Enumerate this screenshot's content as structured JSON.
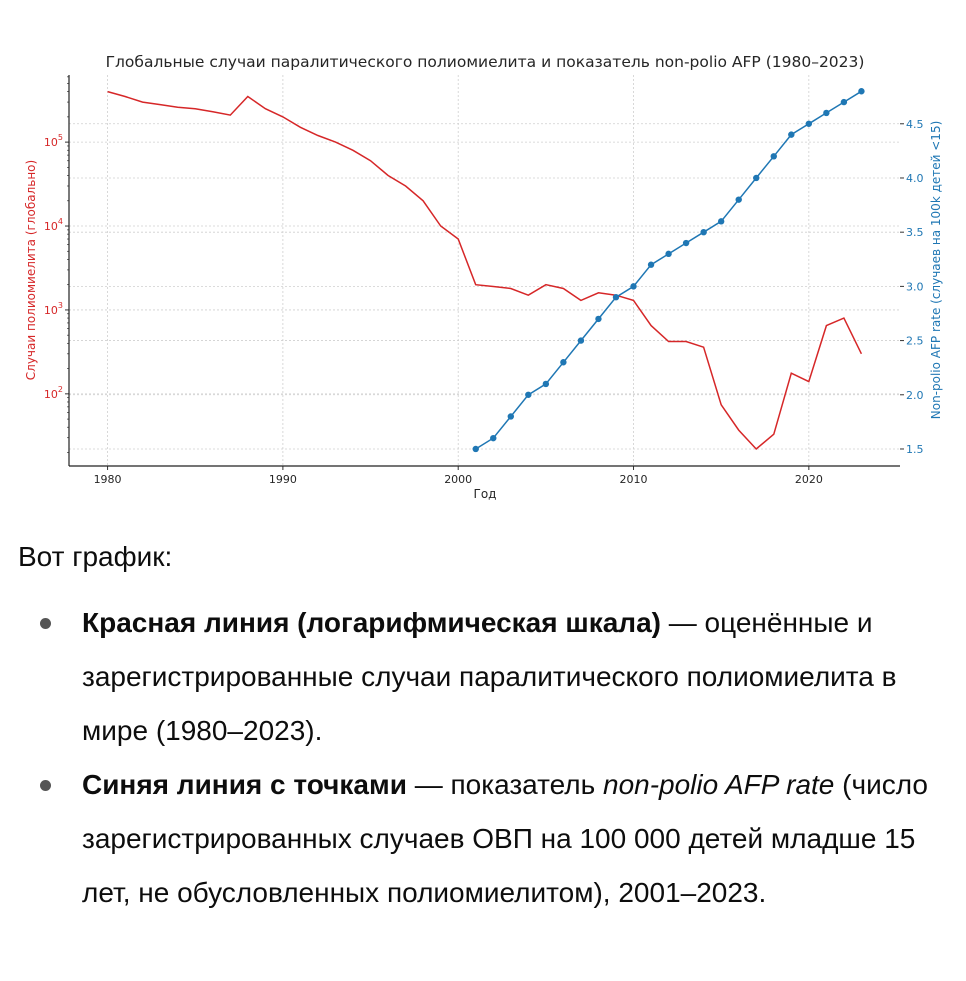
{
  "chart_data": {
    "type": "line",
    "title": "Глобальные случаи паралитического полиомиелита и показатель non-polio AFP (1980–2023)",
    "xlabel": "Год",
    "xlim": [
      1977.8,
      2025.2
    ],
    "xticks": [
      1980,
      1990,
      2000,
      2010,
      2020
    ],
    "grid": true,
    "series": [
      {
        "name": "Случаи полиомиелита (глобально)",
        "axis": "left",
        "scale": "log",
        "color": "#d62728",
        "markers": false,
        "x": [
          1980,
          1981,
          1982,
          1983,
          1984,
          1985,
          1986,
          1987,
          1988,
          1989,
          1990,
          1991,
          1992,
          1993,
          1994,
          1995,
          1996,
          1997,
          1998,
          1999,
          2000,
          2001,
          2002,
          2003,
          2004,
          2005,
          2006,
          2007,
          2008,
          2009,
          2010,
          2011,
          2012,
          2013,
          2014,
          2015,
          2016,
          2017,
          2018,
          2019,
          2020,
          2021,
          2022,
          2023
        ],
        "values": [
          400000,
          350000,
          300000,
          280000,
          260000,
          250000,
          230000,
          210000,
          350000,
          250000,
          200000,
          150000,
          120000,
          100000,
          80000,
          60000,
          40000,
          30000,
          20000,
          10000,
          7000,
          2000,
          1900,
          1800,
          1500,
          2000,
          1800,
          1300,
          1600,
          1500,
          1300,
          650,
          420,
          420,
          360,
          74,
          37,
          22,
          33,
          176,
          140,
          650,
          800,
          300
        ]
      },
      {
        "name": "Non-polio AFP rate (случаев на 100k детей <15)",
        "axis": "right",
        "scale": "linear",
        "color": "#1f77b4",
        "markers": true,
        "x": [
          2001,
          2002,
          2003,
          2004,
          2005,
          2006,
          2007,
          2008,
          2009,
          2010,
          2011,
          2012,
          2013,
          2014,
          2015,
          2016,
          2017,
          2018,
          2019,
          2020,
          2021,
          2022,
          2023
        ],
        "values": [
          1.5,
          1.6,
          1.8,
          2.0,
          2.1,
          2.3,
          2.5,
          2.7,
          2.9,
          3.0,
          3.2,
          3.3,
          3.4,
          3.5,
          3.6,
          3.8,
          4.0,
          4.2,
          4.4,
          4.5,
          4.6,
          4.7,
          4.8
        ]
      }
    ],
    "left_axis": {
      "label": "Случаи полиомиелита (глобально)",
      "scale": "log",
      "ylim_log10": [
        1.14,
        5.8
      ],
      "tick_exponents": [
        "2",
        "3",
        "4",
        "5"
      ],
      "tick_base": "10",
      "color": "#d62728"
    },
    "right_axis": {
      "label": "Non-polio AFP rate (случаев на 100k детей <15)",
      "ylim": [
        1.343,
        4.95
      ],
      "ticks": [
        "1.5",
        "2.0",
        "2.5",
        "3.0",
        "3.5",
        "4.0",
        "4.5"
      ],
      "color": "#1f77b4"
    }
  },
  "answer": {
    "intro": "Вот график:",
    "bullets": [
      {
        "bold": "Красная линия (логарифмическая шкала)",
        "text": " — оценённые и зарегистрированные случаи паралитического полиомиелита в мире (1980–2023)."
      },
      {
        "bold": "Синяя линия с точками",
        "text_before": " — показатель ",
        "italic": "non-polio AFP rate",
        "text": " (число зарегистрированных случаев ОВП на 100 000 детей младше 15 лет, не обусловленных полиомиелитом), 2001–2023."
      }
    ]
  }
}
